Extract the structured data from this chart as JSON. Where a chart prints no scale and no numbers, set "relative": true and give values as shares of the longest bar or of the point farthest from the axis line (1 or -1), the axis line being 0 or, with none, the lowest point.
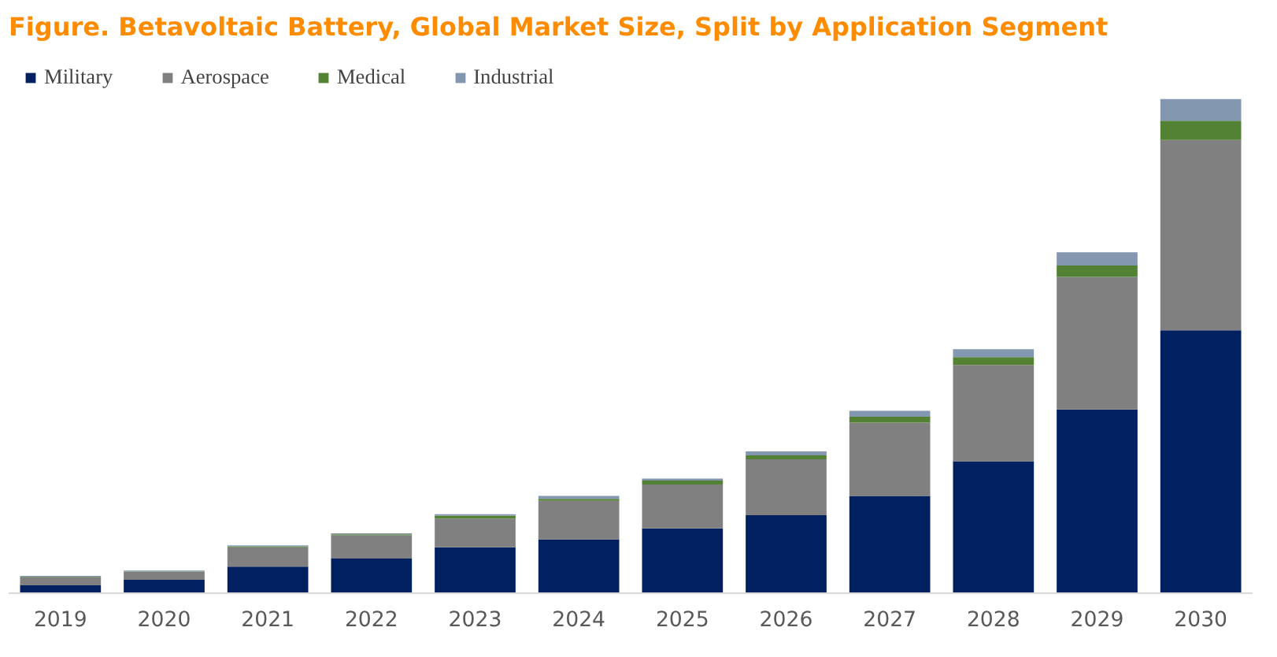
{
  "chart_data": {
    "type": "bar",
    "title": "Figure.   Betavoltaic Battery, Global Market Size, Split by Application Segment",
    "relative": true,
    "stacked": true,
    "legend": "top left",
    "grid": false,
    "categories": [
      "2019",
      "2020",
      "2021",
      "2022",
      "2023",
      "2024",
      "2025",
      "2026",
      "2027",
      "2028",
      "2029",
      "2030"
    ],
    "series": [
      {
        "name": "Military",
        "color": "#002060",
        "values": [
          0.016,
          0.027,
          0.054,
          0.07,
          0.093,
          0.109,
          0.131,
          0.158,
          0.197,
          0.267,
          0.372,
          0.532
        ]
      },
      {
        "name": "Aerospace",
        "color": "#808080",
        "values": [
          0.016,
          0.016,
          0.039,
          0.047,
          0.058,
          0.078,
          0.089,
          0.113,
          0.148,
          0.195,
          0.268,
          0.385
        ]
      },
      {
        "name": "Medical",
        "color": "#548235",
        "values": [
          0.001,
          0.001,
          0.002,
          0.002,
          0.006,
          0.004,
          0.008,
          0.008,
          0.012,
          0.016,
          0.023,
          0.039
        ]
      },
      {
        "name": "Industrial",
        "color": "#8497b0",
        "values": [
          0.002,
          0.002,
          0.002,
          0.002,
          0.003,
          0.006,
          0.004,
          0.008,
          0.012,
          0.016,
          0.027,
          0.044
        ]
      }
    ]
  }
}
